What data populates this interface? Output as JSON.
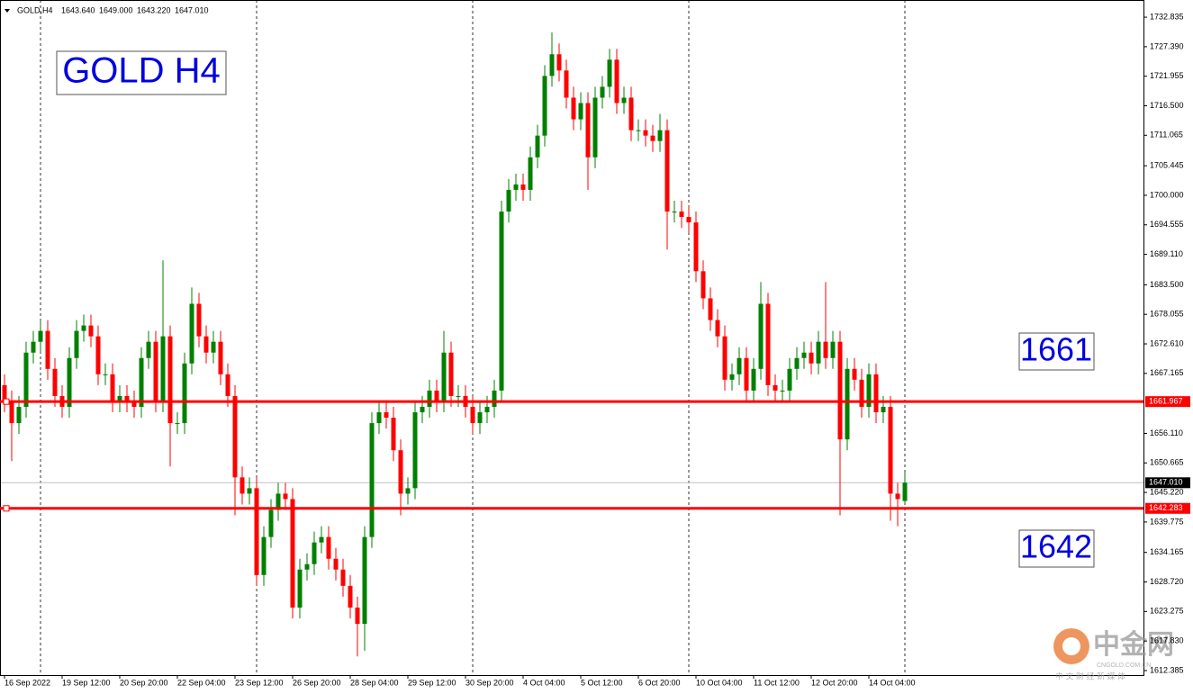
{
  "chart_data": {
    "type": "candlestick",
    "symbol": "GOLD,H4",
    "header_values": [
      "1643.640",
      "1649.000",
      "1643.220",
      "1647.010"
    ],
    "title": "GOLD H4",
    "annotations": [
      "1661",
      "1642"
    ],
    "watermark": {
      "name": "中金网",
      "site": "CNGOLD.COM.CN",
      "slogan": "中 文 财 经 新 媒 体"
    },
    "up_color": "#008000",
    "down_color": "#ff0000",
    "period_separators": true,
    "categories": [
      "16 Sep 2022",
      null,
      null,
      null,
      null,
      null,
      null,
      null,
      "19 Sep 12:00",
      null,
      null,
      null,
      null,
      null,
      null,
      null,
      "20 Sep 20:00",
      null,
      null,
      null,
      null,
      null,
      null,
      null,
      "22 Sep 04:00",
      null,
      null,
      null,
      null,
      null,
      null,
      null,
      "23 Sep 12:00",
      null,
      null,
      null,
      null,
      null,
      null,
      null,
      "26 Sep 20:00",
      null,
      null,
      null,
      null,
      null,
      null,
      null,
      "28 Sep 04:00",
      null,
      null,
      null,
      null,
      null,
      null,
      null,
      "29 Sep 12:00",
      null,
      null,
      null,
      null,
      null,
      null,
      null,
      "30 Sep 20:00",
      null,
      null,
      null,
      null,
      null,
      null,
      null,
      "4 Oct 04:00",
      null,
      null,
      null,
      null,
      null,
      null,
      null,
      "5 Oct 12:00",
      null,
      null,
      null,
      null,
      null,
      null,
      null,
      "6 Oct 20:00",
      null,
      null,
      null,
      null,
      null,
      null,
      null,
      "10 Oct 04:00",
      null,
      null,
      null,
      null,
      null,
      null,
      null,
      "11 Oct 12:00",
      null,
      null,
      null,
      null,
      null,
      null,
      null,
      "12 Oct 20:00",
      null,
      null,
      null,
      null,
      null,
      null,
      null,
      "14 Oct 04:00",
      null,
      null,
      null,
      null,
      null
    ],
    "open": [
      1665,
      1662,
      1658,
      1661,
      1671,
      1673,
      1675,
      1668,
      1663,
      1661,
      1670,
      1675,
      1676,
      1674,
      1667,
      1667,
      1662,
      1663,
      1662,
      1661,
      1670,
      1673,
      1662,
      1674,
      1658,
      1658,
      1669,
      1680,
      1674,
      1671,
      1673,
      1667,
      1663,
      1648,
      1645,
      1646,
      1630,
      1637,
      1642,
      1645,
      1644,
      1624,
      1631,
      1632,
      1636,
      1637,
      1633,
      1631,
      1628,
      1624,
      1621,
      1637,
      1658,
      1660,
      1659,
      1653,
      1645,
      1646,
      1660,
      1661,
      1664,
      1662,
      1671,
      1663,
      1663,
      1661,
      1658,
      1660,
      1661,
      1664,
      1697,
      1701,
      1702,
      1701,
      1707,
      1711,
      1722,
      1726,
      1723,
      1718,
      1714,
      1717,
      1707,
      1718,
      1720,
      1725,
      1717,
      1718,
      1712,
      1712,
      1711,
      1710,
      1712,
      1697,
      1697,
      1696,
      1695,
      1686,
      1681,
      1677,
      1674,
      1666,
      1667,
      1670,
      1664,
      1668,
      1680,
      1665,
      1664,
      1664,
      1668,
      1670,
      1671,
      1669,
      1673,
      1670,
      1673,
      1655,
      1668,
      1666,
      1661,
      1667,
      1660,
      1661,
      1645,
      1643.64
    ],
    "high": [
      1667,
      1664,
      1663,
      1673,
      1675,
      1677,
      1677,
      1670,
      1665,
      1672,
      1677,
      1678,
      1678,
      1676,
      1669,
      1669,
      1665,
      1665,
      1664,
      1672,
      1675,
      1675,
      1688,
      1676,
      1660,
      1671,
      1683,
      1682,
      1676,
      1675,
      1675,
      1669,
      1665,
      1650,
      1648,
      1648,
      1639,
      1644,
      1647,
      1647,
      1646,
      1633,
      1634,
      1638,
      1639,
      1639,
      1635,
      1633,
      1630,
      1626,
      1639,
      1660,
      1662,
      1662,
      1661,
      1655,
      1648,
      1662,
      1663,
      1666,
      1666,
      1675,
      1673,
      1665,
      1665,
      1663,
      1662,
      1663,
      1666,
      1699,
      1703,
      1704,
      1704,
      1709,
      1713,
      1724,
      1730,
      1728,
      1725,
      1720,
      1719,
      1719,
      1720,
      1722,
      1727,
      1727,
      1720,
      1720,
      1714,
      1714,
      1713,
      1715,
      1714,
      1699,
      1699,
      1698,
      1697,
      1688,
      1683,
      1679,
      1676,
      1669,
      1672,
      1672,
      1670,
      1684,
      1682,
      1667,
      1666,
      1670,
      1672,
      1673,
      1673,
      1675,
      1684,
      1675,
      1675,
      1670,
      1670,
      1668,
      1669,
      1669,
      1663,
      1663,
      1647,
      1649
    ],
    "low": [
      1660,
      1651,
      1656,
      1659,
      1669,
      1671,
      1666,
      1661,
      1659,
      1659,
      1668,
      1673,
      1672,
      1665,
      1665,
      1660,
      1660,
      1660,
      1659,
      1659,
      1668,
      1660,
      1660,
      1650,
      1656,
      1656,
      1667,
      1672,
      1669,
      1669,
      1665,
      1661,
      1641,
      1643,
      1643,
      1628,
      1628,
      1635,
      1640,
      1642,
      1622,
      1622,
      1629,
      1630,
      1634,
      1631,
      1629,
      1626,
      1622,
      1615,
      1616,
      1635,
      1656,
      1657,
      1651,
      1641,
      1643,
      1644,
      1658,
      1659,
      1660,
      1660,
      1661,
      1661,
      1659,
      1656,
      1656,
      1658,
      1659,
      1662,
      1695,
      1699,
      1699,
      1699,
      1705,
      1709,
      1720,
      1721,
      1716,
      1712,
      1712,
      1701,
      1705,
      1716,
      1718,
      1715,
      1715,
      1710,
      1710,
      1709,
      1708,
      1708,
      1690,
      1695,
      1694,
      1693,
      1684,
      1679,
      1675,
      1672,
      1664,
      1664,
      1665,
      1662,
      1662,
      1666,
      1663,
      1662,
      1662,
      1662,
      1666,
      1668,
      1667,
      1667,
      1668,
      1668,
      1641,
      1653,
      1664,
      1659,
      1659,
      1658,
      1658,
      1640,
      1639,
      1643.22
    ],
    "close": [
      1662,
      1658,
      1661,
      1671,
      1673,
      1675,
      1668,
      1663,
      1661,
      1670,
      1675,
      1676,
      1674,
      1667,
      1667,
      1662,
      1663,
      1662,
      1661,
      1670,
      1673,
      1662,
      1674,
      1658,
      1658,
      1669,
      1680,
      1674,
      1671,
      1673,
      1667,
      1663,
      1648,
      1645,
      1646,
      1630,
      1637,
      1642,
      1645,
      1644,
      1624,
      1631,
      1632,
      1636,
      1637,
      1633,
      1631,
      1628,
      1624,
      1621,
      1637,
      1658,
      1660,
      1659,
      1653,
      1645,
      1646,
      1660,
      1661,
      1664,
      1662,
      1671,
      1663,
      1663,
      1661,
      1658,
      1660,
      1661,
      1664,
      1697,
      1701,
      1702,
      1701,
      1707,
      1711,
      1722,
      1726,
      1723,
      1718,
      1714,
      1717,
      1707,
      1718,
      1720,
      1725,
      1717,
      1718,
      1712,
      1712,
      1711,
      1710,
      1712,
      1697,
      1697,
      1696,
      1695,
      1686,
      1681,
      1677,
      1674,
      1666,
      1667,
      1670,
      1664,
      1668,
      1680,
      1665,
      1664,
      1664,
      1668,
      1670,
      1671,
      1669,
      1673,
      1670,
      1673,
      1655,
      1668,
      1666,
      1661,
      1667,
      1660,
      1661,
      1645,
      1644,
      1647.01
    ],
    "ylim": [
      1611.55,
      1736.0
    ],
    "yticks": [
      1732.835,
      {
        "value": 1727.39,
        "label": "1727.390"
      },
      1721.955,
      {
        "value": 1716.5,
        "label": "1716.500"
      },
      1711.065,
      1705.445,
      {
        "value": 1700,
        "label": "1700.000"
      },
      1694.555,
      {
        "value": 1689.11,
        "label": "1689.110"
      },
      {
        "value": 1683.5,
        "label": "1683.500"
      },
      1678.055,
      {
        "value": 1672.61,
        "label": "1672.610"
      },
      1667.165,
      {
        "value": 1656.11,
        "label": "1656.110"
      },
      1650.665,
      {
        "value": 1645.22,
        "label": "1645.220"
      },
      1639.775,
      1634.165,
      {
        "value": 1628.72,
        "label": "1628.720"
      },
      1623.275,
      {
        "value": 1617.83,
        "label": "1617.830"
      },
      1612.385
    ],
    "hlines": [
      {
        "value": 1661.967,
        "color": "#ff0000"
      },
      {
        "value": 1642.283,
        "color": "#ff0000"
      }
    ],
    "current_price": {
      "value": 1647.01,
      "label": "1647.010"
    }
  }
}
